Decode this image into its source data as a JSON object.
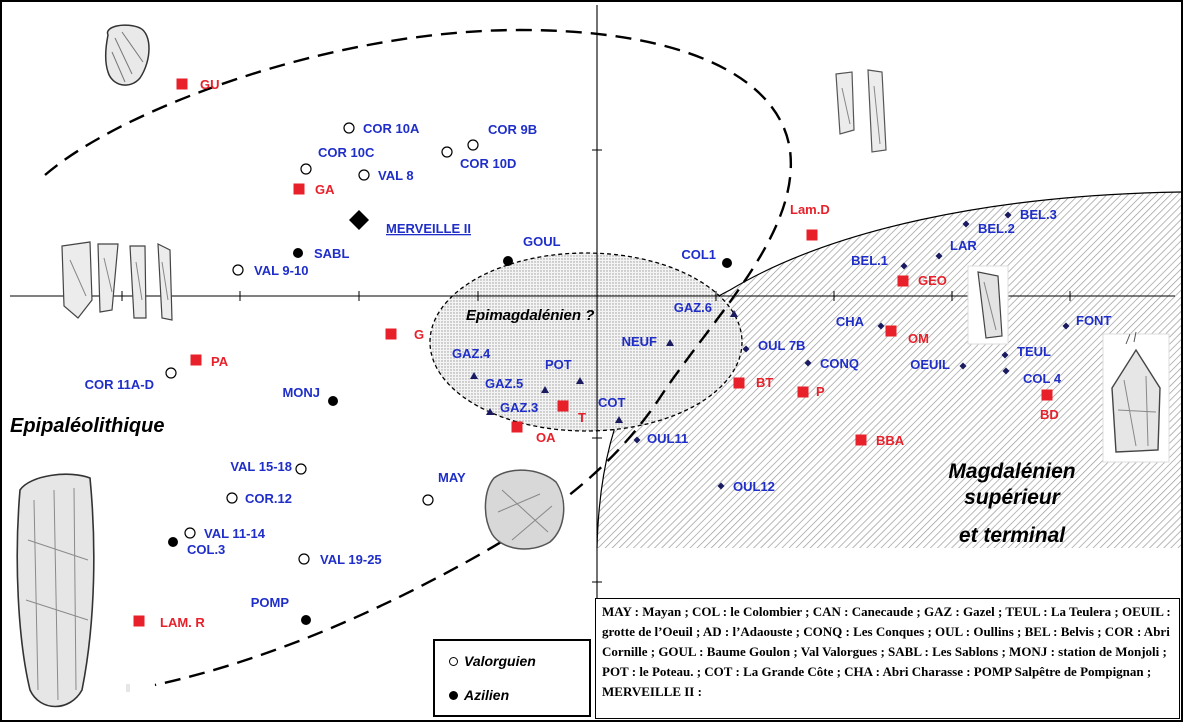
{
  "points": [
    {
      "id": "gu",
      "label": "GU",
      "kind": "square",
      "color": "#e8202a"
    },
    {
      "id": "cor10a",
      "label": "COR 10A",
      "kind": "open",
      "color": "#1f2ec8"
    },
    {
      "id": "cor9b",
      "label": "COR 9B",
      "kind": "open",
      "color": "#1f2ec8"
    },
    {
      "id": "cor10c",
      "label": "COR 10C",
      "kind": "open",
      "color": "#1f2ec8"
    },
    {
      "id": "cor10d",
      "label": "COR 10D",
      "kind": "open",
      "color": "#1f2ec8"
    },
    {
      "id": "val8",
      "label": "VAL 8",
      "kind": "open",
      "color": "#1f2ec8"
    },
    {
      "id": "ga",
      "label": "GA",
      "kind": "square",
      "color": "#e8202a"
    },
    {
      "id": "merveille",
      "label": "MERVEILLE II",
      "kind": "diamond",
      "color": "#1f2ec8"
    },
    {
      "id": "sabl",
      "label": "SABL",
      "kind": "filled",
      "color": "#1f2ec8"
    },
    {
      "id": "val910",
      "label": "VAL 9-10",
      "kind": "open",
      "color": "#1f2ec8"
    },
    {
      "id": "goul",
      "label": "GOUL",
      "kind": "filled",
      "color": "#1f2ec8"
    },
    {
      "id": "col1",
      "label": "COL1",
      "kind": "filled",
      "color": "#1f2ec8"
    },
    {
      "id": "lamd",
      "label": "Lam.D",
      "kind": "square",
      "color": "#e8202a"
    },
    {
      "id": "bel3",
      "label": "BEL.3",
      "kind": "smalldiamond",
      "color": "#1f2ec8"
    },
    {
      "id": "bel2",
      "label": "BEL.2",
      "kind": "smalldiamond",
      "color": "#1f2ec8"
    },
    {
      "id": "lar",
      "label": "LAR",
      "kind": "smalldiamond",
      "color": "#1f2ec8"
    },
    {
      "id": "bel1",
      "label": "BEL.1",
      "kind": "smalldiamond",
      "color": "#1f2ec8"
    },
    {
      "id": "geo",
      "label": "GEO",
      "kind": "square",
      "color": "#e8202a"
    },
    {
      "id": "g",
      "label": "G",
      "kind": "square",
      "color": "#e8202a"
    },
    {
      "id": "gaz6",
      "label": "GAZ.6",
      "kind": "triangle",
      "color": "#1f2ec8"
    },
    {
      "id": "neuf",
      "label": "NEUF",
      "kind": "triangle",
      "color": "#1f2ec8"
    },
    {
      "id": "oul7b",
      "label": "OUL 7B",
      "kind": "smalldiamond",
      "color": "#1f2ec8"
    },
    {
      "id": "cha",
      "label": "CHA",
      "kind": "smalldiamond",
      "color": "#1f2ec8"
    },
    {
      "id": "om",
      "label": "OM",
      "kind": "square",
      "color": "#e8202a"
    },
    {
      "id": "font",
      "label": "FONT",
      "kind": "smalldiamond",
      "color": "#1f2ec8"
    },
    {
      "id": "pa",
      "label": "PA",
      "kind": "square",
      "color": "#e8202a"
    },
    {
      "id": "cor11ad",
      "label": "COR 11A-D",
      "kind": "open",
      "color": "#1f2ec8"
    },
    {
      "id": "gaz4",
      "label": "GAZ.4",
      "kind": "triangle",
      "color": "#1f2ec8"
    },
    {
      "id": "pot",
      "label": "POT",
      "kind": "triangle",
      "color": "#1f2ec8"
    },
    {
      "id": "conq",
      "label": "CONQ",
      "kind": "smalldiamond",
      "color": "#1f2ec8"
    },
    {
      "id": "teul",
      "label": "TEUL",
      "kind": "smalldiamond",
      "color": "#1f2ec8"
    },
    {
      "id": "oeuil",
      "label": "OEUIL",
      "kind": "smalldiamond",
      "color": "#1f2ec8"
    },
    {
      "id": "col4",
      "label": "COL 4",
      "kind": "smalldiamond",
      "color": "#1f2ec8"
    },
    {
      "id": "monj",
      "label": "MONJ",
      "kind": "filled",
      "color": "#1f2ec8"
    },
    {
      "id": "gaz5",
      "label": "GAZ.5",
      "kind": "triangle",
      "color": "#1f2ec8"
    },
    {
      "id": "bt",
      "label": "BT",
      "kind": "square",
      "color": "#e8202a"
    },
    {
      "id": "p",
      "label": "P",
      "kind": "square",
      "color": "#e8202a"
    },
    {
      "id": "bd",
      "label": "BD",
      "kind": "square",
      "color": "#e8202a"
    },
    {
      "id": "gaz3",
      "label": "GAZ.3",
      "kind": "triangle",
      "color": "#1f2ec8"
    },
    {
      "id": "t",
      "label": "T",
      "kind": "square",
      "color": "#e8202a"
    },
    {
      "id": "cot",
      "label": "COT",
      "kind": "triangle",
      "color": "#1f2ec8"
    },
    {
      "id": "oa",
      "label": "OA",
      "kind": "square",
      "color": "#e8202a"
    },
    {
      "id": "oul11",
      "label": "OUL11",
      "kind": "smalldiamond",
      "color": "#1f2ec8"
    },
    {
      "id": "bba",
      "label": "BBA",
      "kind": "square",
      "color": "#e8202a"
    },
    {
      "id": "val1518",
      "label": "VAL 15-18",
      "kind": "open",
      "color": "#1f2ec8"
    },
    {
      "id": "cor12",
      "label": "COR.12",
      "kind": "open",
      "color": "#1f2ec8"
    },
    {
      "id": "may",
      "label": "MAY",
      "kind": "open",
      "color": "#1f2ec8"
    },
    {
      "id": "oul12",
      "label": "OUL12",
      "kind": "smalldiamond",
      "color": "#1f2ec8"
    },
    {
      "id": "val1114",
      "label": "VAL 11-14",
      "kind": "open",
      "color": "#1f2ec8"
    },
    {
      "id": "col3",
      "label": "COL.3",
      "kind": "filled",
      "color": "#1f2ec8"
    },
    {
      "id": "val1925",
      "label": "VAL 19-25",
      "kind": "open",
      "color": "#1f2ec8"
    },
    {
      "id": "pomp",
      "label": "POMP",
      "kind": "filled",
      "color": "#1f2ec8"
    },
    {
      "id": "lamr",
      "label": "LAM. R",
      "kind": "square",
      "color": "#e8202a"
    }
  ],
  "zones": {
    "epimag": "Epimagdalénien ?",
    "epipaleo": "Epipaléolithique",
    "magdalenien_1": "Magdalénien",
    "magdalenien_2": "supérieur",
    "magdalenien_3": "et terminal"
  },
  "legend": {
    "valorguien": "Valorguien",
    "azilien": "Azilien"
  },
  "abbreviations": "MAY : Mayan ; COL : le Colombier ; CAN : Canecaude ; GAZ : Gazel ; TEUL : La Teulera ; OEUIL : grotte de l’Oeuil ; AD : l’Adaouste ; CONQ : Les Conques ; OUL : Oullins ; BEL : Belvis ; COR : Abri Cornille ; GOUL : Baume Goulon ; Val Valorgues ; SABL : Les Sablons ; MONJ : station de Monjoli ; POT : le Poteau. ; COT : La Grande Côte ; CHA : Abri Charasse : POMP Salpêtre de Pompignan ; MERVEILLE II :",
  "colors": {
    "red": "#e8202a",
    "blue": "#1f2ec8",
    "black": "#000000"
  }
}
